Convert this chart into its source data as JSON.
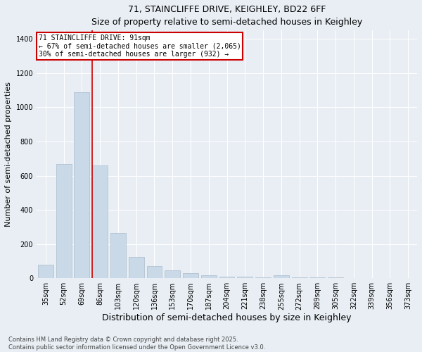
{
  "title1": "71, STAINCLIFFE DRIVE, KEIGHLEY, BD22 6FF",
  "title2": "Size of property relative to semi-detached houses in Keighley",
  "xlabel": "Distribution of semi-detached houses by size in Keighley",
  "ylabel": "Number of semi-detached properties",
  "categories": [
    "35sqm",
    "52sqm",
    "69sqm",
    "86sqm",
    "103sqm",
    "120sqm",
    "136sqm",
    "153sqm",
    "170sqm",
    "187sqm",
    "204sqm",
    "221sqm",
    "238sqm",
    "255sqm",
    "272sqm",
    "289sqm",
    "305sqm",
    "322sqm",
    "339sqm",
    "356sqm",
    "373sqm"
  ],
  "values": [
    80,
    670,
    1090,
    660,
    265,
    125,
    70,
    45,
    30,
    18,
    10,
    7,
    5,
    15,
    4,
    3,
    3,
    2,
    1,
    1,
    1
  ],
  "bar_color": "#c9d9e8",
  "bar_edge_color": "#aabbcc",
  "annotation_text1": "71 STAINCLIFFE DRIVE: 91sqm",
  "annotation_text2": "← 67% of semi-detached houses are smaller (2,065)",
  "annotation_text3": "30% of semi-detached houses are larger (932) →",
  "annotation_box_color": "#ffffff",
  "annotation_border_color": "#cc0000",
  "red_line_bin": 3,
  "ylim": [
    0,
    1450
  ],
  "yticks": [
    0,
    200,
    400,
    600,
    800,
    1000,
    1200,
    1400
  ],
  "footer1": "Contains HM Land Registry data © Crown copyright and database right 2025.",
  "footer2": "Contains public sector information licensed under the Open Government Licence v3.0.",
  "bg_color": "#e8eef4",
  "plot_bg_color": "#e8eef4",
  "title_fontsize": 9,
  "ylabel_fontsize": 8,
  "xlabel_fontsize": 9,
  "tick_fontsize": 7,
  "annotation_fontsize": 7,
  "footer_fontsize": 6
}
